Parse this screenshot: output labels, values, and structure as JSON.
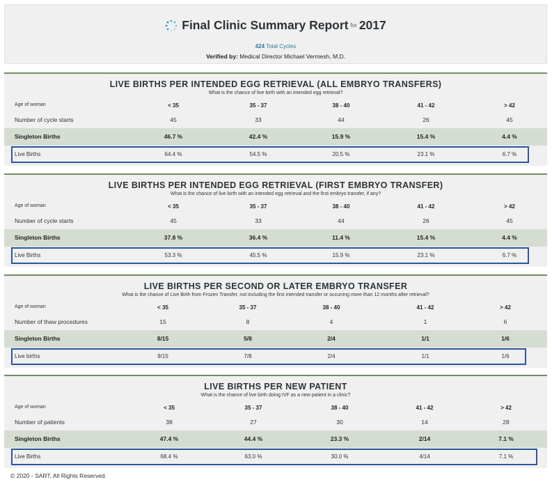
{
  "header": {
    "title": "Final Clinic Summary Report",
    "for_text": "for",
    "year": "2017",
    "total_cycles_count": "424",
    "total_cycles_label": "Total Cycles",
    "verified_label": "Verified by:",
    "verified_name": "Medical Director Michael Vermesh, M.D."
  },
  "sections": [
    {
      "title": "LIVE BIRTHS PER INTENDED EGG RETRIEVAL (ALL EMBRYO TRANSFERS)",
      "subtitle": "What is the chance of live birth with an intended egg retrieval?",
      "age_label": "Age of woman",
      "age_groups": [
        "< 35",
        "35 - 37",
        "38 - 40",
        "41 - 42",
        "> 42"
      ],
      "count_label": "Number of cycle starts",
      "counts": [
        "45",
        "33",
        "44",
        "26",
        "45"
      ],
      "singleton_label": "Singleton Births",
      "singleton": [
        "46.7 %",
        "42.4 %",
        "15.9 %",
        "15.4 %",
        "4.4 %"
      ],
      "live_label": "Live Births",
      "live": [
        "64.4 %",
        "54.5 %",
        "20.5 %",
        "23.1 %",
        "6.7 %"
      ]
    },
    {
      "title": "LIVE BIRTHS PER INTENDED EGG RETRIEVAL (FIRST EMBRYO TRANSFER)",
      "subtitle": "What is the chance of live birth with an intended egg retrieval and the first embryo transfer, if any?",
      "age_label": "Age of woman",
      "age_groups": [
        "< 35",
        "35 - 37",
        "38 - 40",
        "41 - 42",
        "> 42"
      ],
      "count_label": "Number of cycle starts",
      "counts": [
        "45",
        "33",
        "44",
        "26",
        "45"
      ],
      "singleton_label": "Singleton Births",
      "singleton": [
        "37.8 %",
        "36.4 %",
        "11.4 %",
        "15.4 %",
        "4.4 %"
      ],
      "live_label": "Live Births",
      "live": [
        "53.3 %",
        "45.5 %",
        "15.9 %",
        "23.1 %",
        "6.7 %"
      ]
    },
    {
      "title": "LIVE BIRTHS PER SECOND OR LATER EMBRYO TRANSFER",
      "subtitle": "What is the chance of Live Birth from Frozen Transfer, not including the first intended transfer or occurring more than 12 months after retrieval?",
      "age_label": "Age of woman",
      "age_groups": [
        "< 35",
        "35 - 37",
        "38 - 40",
        "41 - 42",
        "> 42"
      ],
      "count_label": "Number of thaw procedures",
      "counts": [
        "15",
        "8",
        "4",
        "1",
        "6"
      ],
      "singleton_label": "Singleton Births",
      "singleton": [
        "8/15",
        "5/8",
        "2/4",
        "1/1",
        "1/6"
      ],
      "live_label": "Live births",
      "live": [
        "9/15",
        "7/8",
        "2/4",
        "1/1",
        "1/6"
      ]
    },
    {
      "title": "LIVE BIRTHS PER NEW PATIENT",
      "subtitle": "What is the chance of live birth doing IVF as a new patient in a clinic?",
      "age_label": "Age of woman",
      "age_groups": [
        "< 35",
        "35 - 37",
        "38 - 40",
        "41 - 42",
        "> 42"
      ],
      "count_label": "Number of patients",
      "counts": [
        "38",
        "27",
        "30",
        "14",
        "28"
      ],
      "singleton_label": "Singleton Births",
      "singleton": [
        "47.4 %",
        "44.4 %",
        "23.3 %",
        "2/14",
        "7.1 %"
      ],
      "live_label": "Live Births",
      "live": [
        "68.4 %",
        "63.0 %",
        "30.0 %",
        "4/14",
        "7.1 %"
      ]
    }
  ],
  "footer": {
    "copyright": "© 2020 - SART, All Rights Reserved."
  }
}
